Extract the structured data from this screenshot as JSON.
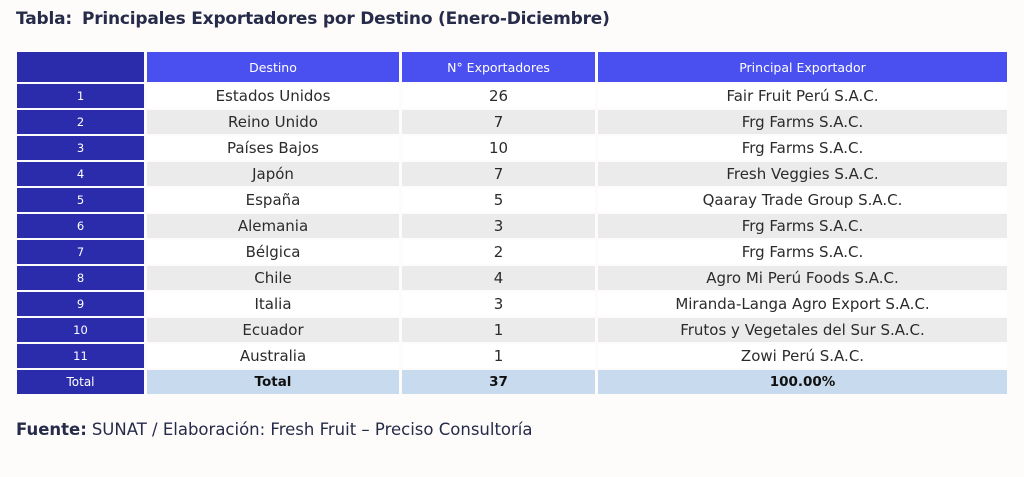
{
  "title": {
    "prefix": "Tabla:",
    "text": "Principales Exportadores por Destino (Enero-Diciembre)"
  },
  "table": {
    "columns": [
      "Destino",
      "N° Exportadores",
      "Principal Exportador"
    ],
    "rows": [
      {
        "rank": "1",
        "destino": "Estados Unidos",
        "exportadores": "26",
        "principal": "Fair Fruit Perú S.A.C."
      },
      {
        "rank": "2",
        "destino": "Reino Unido",
        "exportadores": "7",
        "principal": "Frg Farms S.A.C."
      },
      {
        "rank": "3",
        "destino": "Países Bajos",
        "exportadores": "10",
        "principal": "Frg Farms S.A.C."
      },
      {
        "rank": "4",
        "destino": "Japón",
        "exportadores": "7",
        "principal": "Fresh Veggies S.A.C."
      },
      {
        "rank": "5",
        "destino": "España",
        "exportadores": "5",
        "principal": "Qaaray Trade Group S.A.C."
      },
      {
        "rank": "6",
        "destino": "Alemania",
        "exportadores": "3",
        "principal": "Frg Farms S.A.C."
      },
      {
        "rank": "7",
        "destino": "Bélgica",
        "exportadores": "2",
        "principal": "Frg Farms S.A.C."
      },
      {
        "rank": "8",
        "destino": "Chile",
        "exportadores": "4",
        "principal": "Agro Mi Perú Foods S.A.C."
      },
      {
        "rank": "9",
        "destino": "Italia",
        "exportadores": "3",
        "principal": "Miranda-Langa Agro Export S.A.C."
      },
      {
        "rank": "10",
        "destino": "Ecuador",
        "exportadores": "1",
        "principal": "Frutos y Vegetales del Sur S.A.C."
      },
      {
        "rank": "11",
        "destino": "Australia",
        "exportadores": "1",
        "principal": "Zowi Perú S.A.C."
      }
    ],
    "total": {
      "rank_label": "Total",
      "destino": "Total",
      "exportadores": "37",
      "principal": "100.00%"
    }
  },
  "footer": {
    "prefix": "Fuente:",
    "text": "SUNAT / Elaboración: Fresh Fruit – Preciso Consultoría"
  },
  "colors": {
    "header_blue": "#4a4ff0",
    "index_dark_blue": "#2b2cac",
    "row_alt_gray": "#ebebeb",
    "total_light_blue": "#c8dbee",
    "text_navy": "#262b49"
  }
}
